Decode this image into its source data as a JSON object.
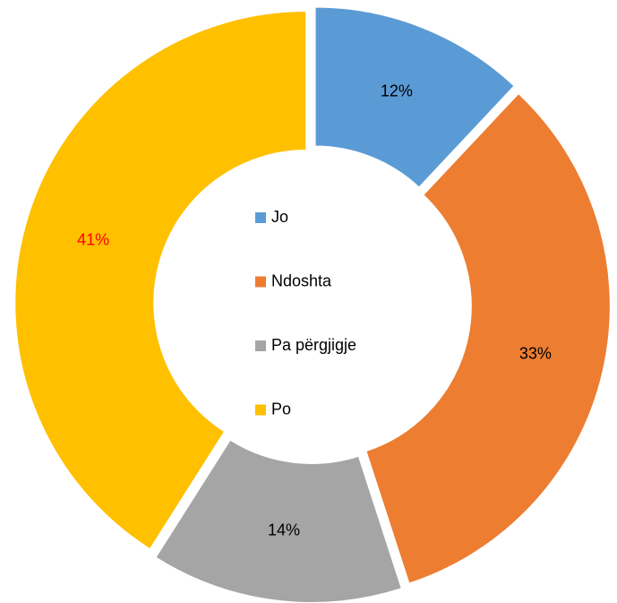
{
  "chart_data": {
    "type": "donut",
    "categories": [
      "Jo",
      "Ndoshta",
      "Pa përgjigje",
      "Po"
    ],
    "values": [
      12,
      33,
      14,
      41
    ],
    "value_labels": [
      "12%",
      "33%",
      "14%",
      "41%"
    ],
    "colors": [
      "#5b9bd5",
      "#ed7d31",
      "#a5a5a5",
      "#ffc000"
    ],
    "value_label_colors": [
      "#000000",
      "#000000",
      "#000000",
      "#ff0000"
    ],
    "legend": "center"
  }
}
